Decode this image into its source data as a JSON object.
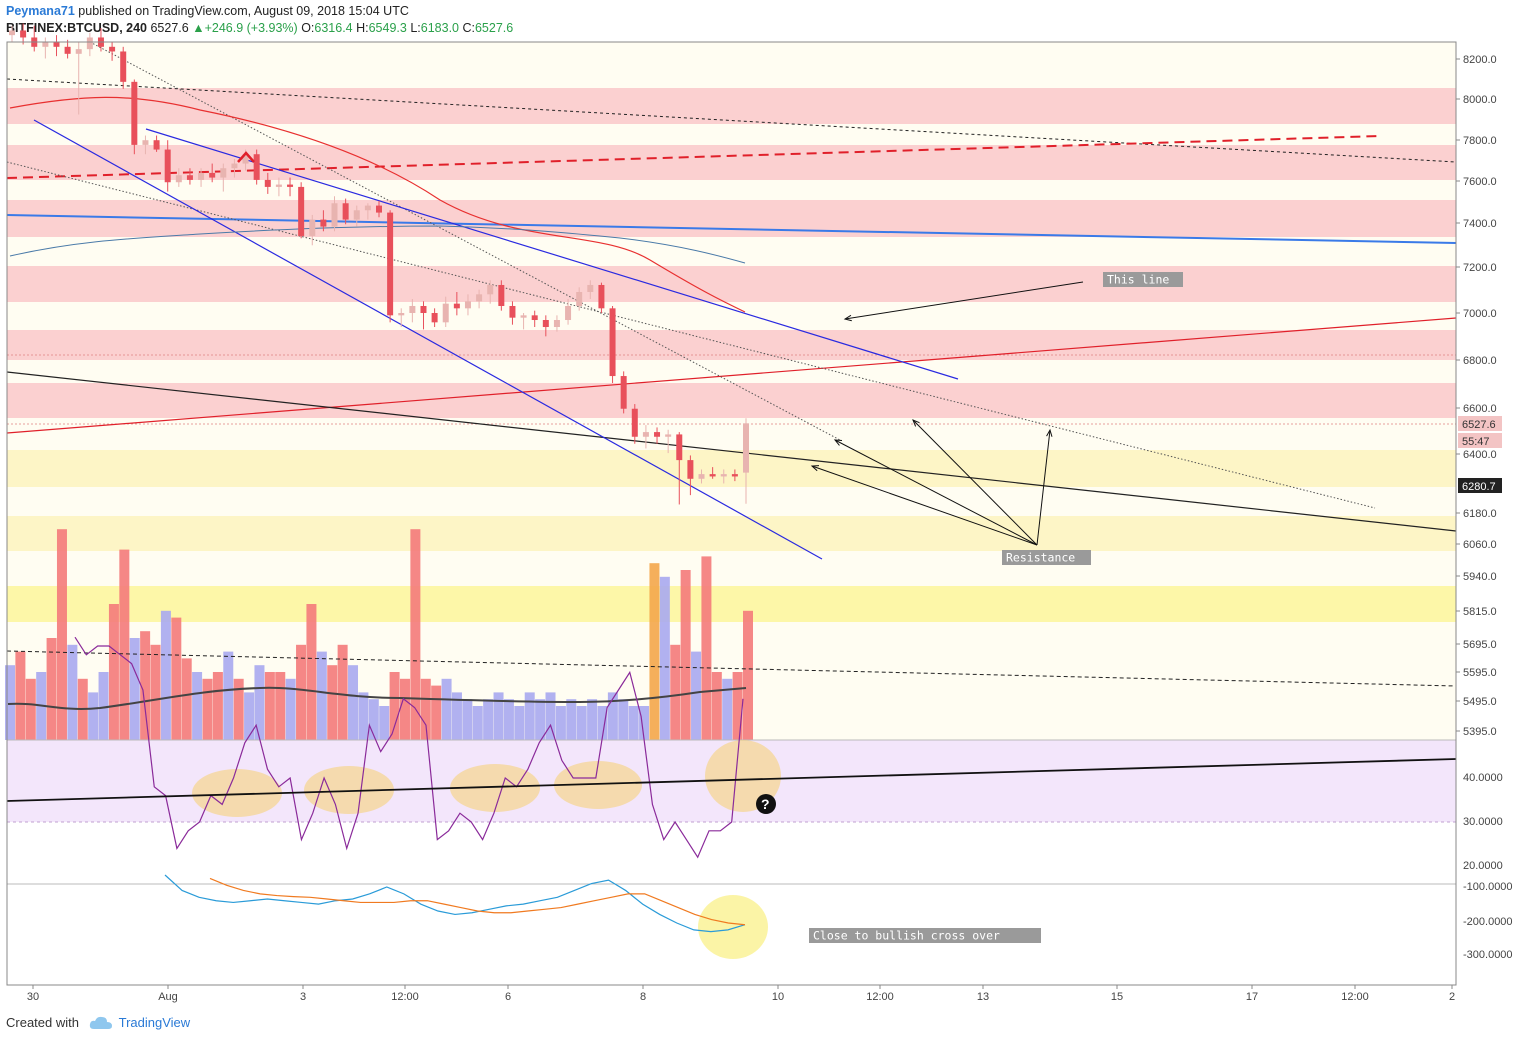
{
  "header": {
    "author": "Peymana71",
    "published_text": "published on TradingView.com,",
    "date": "August 09, 2018 15:04 UTC",
    "symbol": "BITFINEX:BTCUSD, 240",
    "price": "6527.6",
    "change": "+246.9 (+3.93%)",
    "o_label": "O:",
    "o_value": "6316.4",
    "h_label": "H:",
    "h_value": "6549.3",
    "l_label": "L:",
    "l_value": "6183.0",
    "c_label": "C:",
    "c_value": "6527.6"
  },
  "footer": {
    "created_with": "Created with",
    "brand": "TradingView"
  },
  "colors": {
    "up_candle": "#e8b4b0",
    "down_candle": "#e8505b",
    "vol_up": "#a8a8f0",
    "vol_down": "#f47a7a",
    "zone_red": "#fbd0d0",
    "zone_yellow": "#fdf5c6",
    "rsi_band": "#f3e6fb",
    "macd_line": "#2a9bd8",
    "signal_line": "#f07a20"
  },
  "chart_data": [
    {
      "type": "candlestick",
      "name": "BITFINEX:BTCUSD, 240",
      "x_ticks": [
        "30",
        "Aug",
        "3",
        "12:00",
        "6",
        "8",
        "10",
        "12:00",
        "13",
        "15",
        "17",
        "12:00",
        "2"
      ],
      "y_ticks": [
        "8200.0",
        "8000.0",
        "7800.0",
        "7600.0",
        "7400.0",
        "7200.0",
        "7000.0",
        "6800.0",
        "6600.0",
        "6400.0",
        "6180.0",
        "6060.0",
        "5940.0",
        "5815.0",
        "5695.0",
        "5595.0",
        "5495.0",
        "5395.0"
      ],
      "price_labels": [
        "6527.6",
        "55:47",
        "6280.7"
      ],
      "annotations": [
        "This line",
        "Resistance",
        "Close to bullish cross over"
      ],
      "candles": [
        {
          "o": 8190,
          "h": 8230,
          "l": 8160,
          "c": 8210
        },
        {
          "o": 8210,
          "h": 8240,
          "l": 8150,
          "c": 8180
        },
        {
          "o": 8180,
          "h": 8230,
          "l": 8120,
          "c": 8140
        },
        {
          "o": 8140,
          "h": 8180,
          "l": 8090,
          "c": 8160
        },
        {
          "o": 8160,
          "h": 8190,
          "l": 8100,
          "c": 8140
        },
        {
          "o": 8140,
          "h": 8170,
          "l": 8090,
          "c": 8110
        },
        {
          "o": 8110,
          "h": 8160,
          "l": 7850,
          "c": 8130
        },
        {
          "o": 8130,
          "h": 8200,
          "l": 8100,
          "c": 8180
        },
        {
          "o": 8180,
          "h": 8220,
          "l": 8120,
          "c": 8140
        },
        {
          "o": 8140,
          "h": 8160,
          "l": 8080,
          "c": 8120
        },
        {
          "o": 8120,
          "h": 8140,
          "l": 7960,
          "c": 7990
        },
        {
          "o": 7990,
          "h": 8000,
          "l": 7680,
          "c": 7720
        },
        {
          "o": 7720,
          "h": 7760,
          "l": 7680,
          "c": 7740
        },
        {
          "o": 7740,
          "h": 7760,
          "l": 7690,
          "c": 7700
        },
        {
          "o": 7700,
          "h": 7740,
          "l": 7520,
          "c": 7560
        },
        {
          "o": 7560,
          "h": 7620,
          "l": 7540,
          "c": 7590
        },
        {
          "o": 7590,
          "h": 7620,
          "l": 7550,
          "c": 7570
        },
        {
          "o": 7570,
          "h": 7620,
          "l": 7540,
          "c": 7600
        },
        {
          "o": 7600,
          "h": 7640,
          "l": 7560,
          "c": 7580
        },
        {
          "o": 7580,
          "h": 7640,
          "l": 7520,
          "c": 7620
        },
        {
          "o": 7620,
          "h": 7660,
          "l": 7580,
          "c": 7640
        },
        {
          "o": 7640,
          "h": 7700,
          "l": 7610,
          "c": 7680
        },
        {
          "o": 7680,
          "h": 7700,
          "l": 7550,
          "c": 7570
        },
        {
          "o": 7570,
          "h": 7600,
          "l": 7510,
          "c": 7540
        },
        {
          "o": 7540,
          "h": 7580,
          "l": 7500,
          "c": 7550
        },
        {
          "o": 7550,
          "h": 7580,
          "l": 7500,
          "c": 7540
        },
        {
          "o": 7540,
          "h": 7560,
          "l": 7320,
          "c": 7330
        },
        {
          "o": 7330,
          "h": 7420,
          "l": 7290,
          "c": 7400
        },
        {
          "o": 7400,
          "h": 7440,
          "l": 7350,
          "c": 7370
        },
        {
          "o": 7370,
          "h": 7500,
          "l": 7350,
          "c": 7470
        },
        {
          "o": 7470,
          "h": 7490,
          "l": 7380,
          "c": 7400
        },
        {
          "o": 7400,
          "h": 7460,
          "l": 7370,
          "c": 7440
        },
        {
          "o": 7440,
          "h": 7470,
          "l": 7400,
          "c": 7460
        },
        {
          "o": 7460,
          "h": 7480,
          "l": 7410,
          "c": 7430
        },
        {
          "o": 7430,
          "h": 7440,
          "l": 6960,
          "c": 6990
        },
        {
          "o": 6990,
          "h": 7020,
          "l": 6940,
          "c": 7000
        },
        {
          "o": 7000,
          "h": 7060,
          "l": 6960,
          "c": 7030
        },
        {
          "o": 7030,
          "h": 7050,
          "l": 6930,
          "c": 7000
        },
        {
          "o": 7000,
          "h": 7020,
          "l": 6940,
          "c": 6960
        },
        {
          "o": 6960,
          "h": 7070,
          "l": 6940,
          "c": 7040
        },
        {
          "o": 7040,
          "h": 7090,
          "l": 6990,
          "c": 7020
        },
        {
          "o": 7020,
          "h": 7080,
          "l": 6990,
          "c": 7050
        },
        {
          "o": 7050,
          "h": 7100,
          "l": 7020,
          "c": 7080
        },
        {
          "o": 7080,
          "h": 7140,
          "l": 7040,
          "c": 7120
        },
        {
          "o": 7120,
          "h": 7140,
          "l": 7010,
          "c": 7030
        },
        {
          "o": 7030,
          "h": 7050,
          "l": 6950,
          "c": 6980
        },
        {
          "o": 6980,
          "h": 7000,
          "l": 6930,
          "c": 6990
        },
        {
          "o": 6990,
          "h": 7010,
          "l": 6940,
          "c": 6970
        },
        {
          "o": 6970,
          "h": 6990,
          "l": 6900,
          "c": 6940
        },
        {
          "o": 6940,
          "h": 6990,
          "l": 6920,
          "c": 6970
        },
        {
          "o": 6970,
          "h": 7060,
          "l": 6950,
          "c": 7030
        },
        {
          "o": 7030,
          "h": 7110,
          "l": 7010,
          "c": 7090
        },
        {
          "o": 7090,
          "h": 7140,
          "l": 7060,
          "c": 7120
        },
        {
          "o": 7120,
          "h": 7130,
          "l": 7000,
          "c": 7020
        },
        {
          "o": 7020,
          "h": 7030,
          "l": 6700,
          "c": 6730
        },
        {
          "o": 6730,
          "h": 6750,
          "l": 6570,
          "c": 6590
        },
        {
          "o": 6590,
          "h": 6610,
          "l": 6440,
          "c": 6470
        },
        {
          "o": 6470,
          "h": 6520,
          "l": 6420,
          "c": 6490
        },
        {
          "o": 6490,
          "h": 6510,
          "l": 6440,
          "c": 6470
        },
        {
          "o": 6470,
          "h": 6500,
          "l": 6400,
          "c": 6480
        },
        {
          "o": 6480,
          "h": 6490,
          "l": 6180,
          "c": 6370
        },
        {
          "o": 6370,
          "h": 6390,
          "l": 6220,
          "c": 6290
        },
        {
          "o": 6290,
          "h": 6330,
          "l": 6270,
          "c": 6310
        },
        {
          "o": 6310,
          "h": 6340,
          "l": 6290,
          "c": 6300
        },
        {
          "o": 6300,
          "h": 6330,
          "l": 6270,
          "c": 6310
        },
        {
          "o": 6310,
          "h": 6330,
          "l": 6280,
          "c": 6300
        },
        {
          "o": 6316.4,
          "h": 6549.3,
          "l": 6183.0,
          "c": 6527.6
        }
      ],
      "volume": [
        22,
        26,
        18,
        20,
        30,
        62,
        28,
        18,
        14,
        20,
        40,
        56,
        30,
        32,
        28,
        38,
        36,
        24,
        20,
        18,
        20,
        26,
        18,
        14,
        22,
        20,
        20,
        18,
        28,
        40,
        26,
        22,
        28,
        22,
        14,
        12,
        10,
        20,
        18,
        62,
        18,
        16,
        18,
        14,
        12,
        10,
        12,
        14,
        12,
        10,
        14,
        12,
        14,
        10,
        12,
        10,
        12,
        10,
        14,
        12,
        10,
        10,
        52,
        48,
        28,
        50,
        26,
        54,
        20,
        18,
        20,
        38
      ],
      "rsi": {
        "range": [
          15,
          48
        ],
        "band": [
          30,
          48
        ],
        "values": [
          46,
          44,
          45,
          45,
          44,
          43,
          40,
          29,
          28,
          22,
          24,
          25,
          28,
          27,
          30,
          34,
          36,
          31,
          29,
          30,
          23,
          26,
          30,
          27,
          22,
          26,
          36,
          33,
          35,
          39,
          38,
          36,
          23,
          24,
          26,
          25,
          23,
          26,
          30,
          29,
          31,
          34,
          36,
          32,
          30,
          30,
          30,
          38,
          40,
          42,
          37,
          27,
          23,
          25,
          23,
          21,
          24,
          24,
          25,
          39
        ],
        "trendline": [
          35,
          45
        ]
      },
      "macd": {
        "range": [
          -340,
          -60
        ],
        "macd": [
          -65,
          -110,
          -130,
          -140,
          -145,
          -140,
          -135,
          -140,
          -145,
          -150,
          -140,
          -135,
          -120,
          -100,
          -120,
          -150,
          -170,
          -180,
          -175,
          -165,
          -155,
          -150,
          -140,
          -130,
          -110,
          -90,
          -80,
          -110,
          -150,
          -180,
          -205,
          -225,
          -230,
          -225,
          -210
        ],
        "signal": [
          -75,
          -95,
          -110,
          -120,
          -125,
          -128,
          -130,
          -135,
          -140,
          -145,
          -145,
          -145,
          -140,
          -140,
          -150,
          -160,
          -170,
          -175,
          -175,
          -170,
          -165,
          -160,
          -150,
          -140,
          -130,
          -120,
          -120,
          -140,
          -160,
          -180,
          -195,
          -205,
          -210
        ]
      }
    }
  ]
}
